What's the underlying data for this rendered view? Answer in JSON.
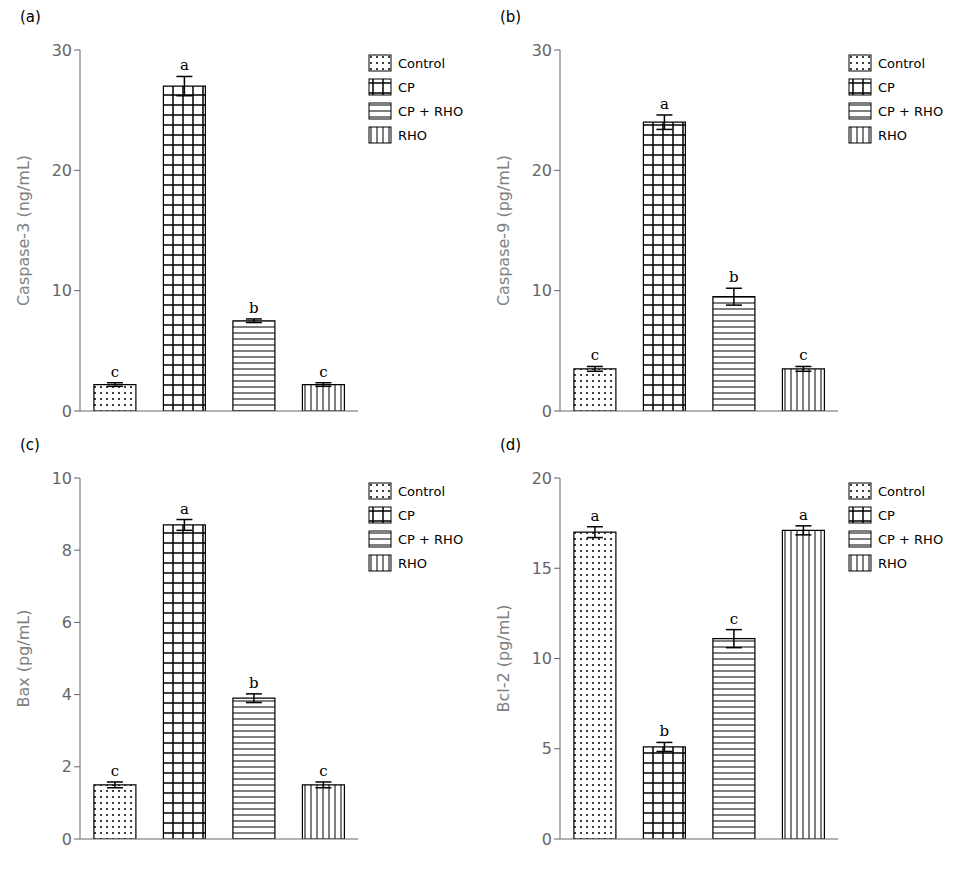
{
  "chart_data": [
    {
      "type": "bar",
      "title": "(a)",
      "ylabel": "Caspase-3 (ng/mL)",
      "categories": [
        "Control",
        "CP",
        "CP + RHO",
        "RHO"
      ],
      "values": [
        2.2,
        27.0,
        7.5,
        2.2
      ],
      "errors": [
        0.15,
        0.8,
        0.15,
        0.15
      ],
      "annotations": [
        "c",
        "a",
        "b",
        "c"
      ],
      "ylim": [
        0,
        30
      ],
      "yticks": [
        0,
        10,
        20,
        30
      ],
      "legend": "right",
      "grid": false,
      "tick_labels": "y"
    },
    {
      "type": "bar",
      "title": "(b)",
      "ylabel": "Caspase-9 (pg/mL)",
      "categories": [
        "Control",
        "CP",
        "CP + RHO",
        "RHO"
      ],
      "values": [
        3.5,
        24.0,
        9.5,
        3.5
      ],
      "errors": [
        0.2,
        0.6,
        0.7,
        0.2
      ],
      "annotations": [
        "c",
        "a",
        "b",
        "c"
      ],
      "ylim": [
        0,
        30
      ],
      "yticks": [
        0,
        10,
        20,
        30
      ],
      "legend": "right",
      "grid": false,
      "tick_labels": "y"
    },
    {
      "type": "bar",
      "title": "(c)",
      "ylabel": "Bax (pg/mL)",
      "categories": [
        "Control",
        "CP",
        "CP + RHO",
        "RHO"
      ],
      "values": [
        1.5,
        8.7,
        3.9,
        1.5
      ],
      "errors": [
        0.08,
        0.15,
        0.12,
        0.08
      ],
      "annotations": [
        "c",
        "a",
        "b",
        "c"
      ],
      "ylim": [
        0,
        10
      ],
      "yticks": [
        0,
        2,
        4,
        6,
        8,
        10
      ],
      "legend": "right",
      "grid": false,
      "tick_labels": "y"
    },
    {
      "type": "bar",
      "title": "(d)",
      "ylabel": "Bcl-2 (pg/mL)",
      "categories": [
        "Control",
        "CP",
        "CP + RHO",
        "RHO"
      ],
      "values": [
        17.0,
        5.1,
        11.1,
        17.1
      ],
      "errors": [
        0.3,
        0.25,
        0.5,
        0.25
      ],
      "annotations": [
        "a",
        "b",
        "c",
        "a"
      ],
      "ylim": [
        0,
        20
      ],
      "yticks": [
        0,
        5,
        10,
        15,
        20
      ],
      "legend": "right",
      "grid": false,
      "tick_labels": "y"
    }
  ]
}
